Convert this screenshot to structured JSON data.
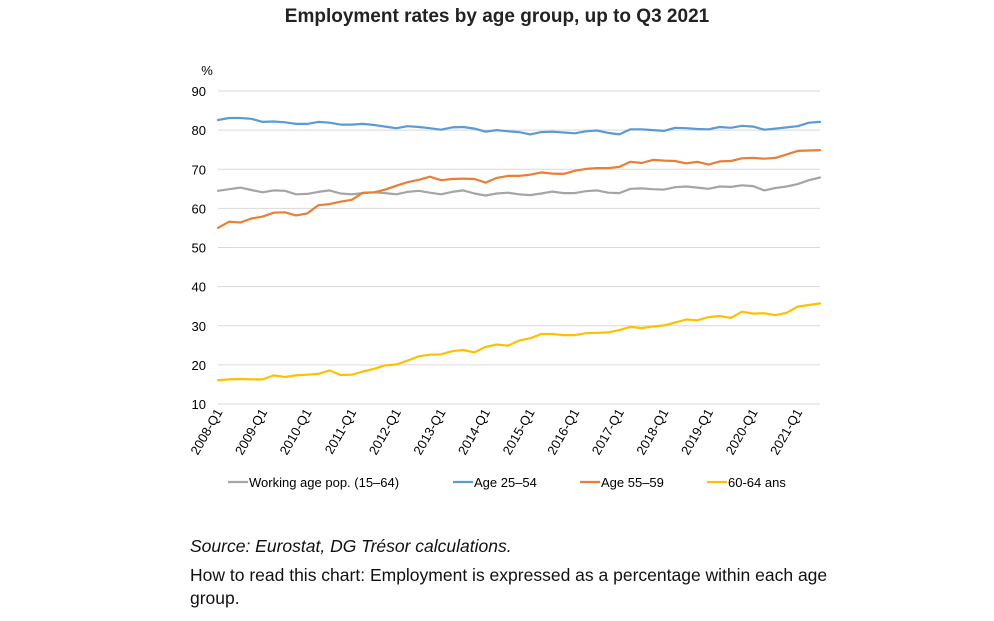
{
  "chart_data": {
    "type": "line",
    "title": "Employment rates by age group, up to Q3 2021",
    "ylabel": "%",
    "xlabel": "",
    "ylim": [
      10,
      90
    ],
    "yticks": [
      10,
      20,
      30,
      40,
      50,
      60,
      70,
      80,
      90
    ],
    "grid": "horizontal",
    "legend_position": "bottom",
    "x": [
      "2008-Q1",
      "2008-Q2",
      "2008-Q3",
      "2008-Q4",
      "2009-Q1",
      "2009-Q2",
      "2009-Q3",
      "2009-Q4",
      "2010-Q1",
      "2010-Q2",
      "2010-Q3",
      "2010-Q4",
      "2011-Q1",
      "2011-Q2",
      "2011-Q3",
      "2011-Q4",
      "2012-Q1",
      "2012-Q2",
      "2012-Q3",
      "2012-Q4",
      "2013-Q1",
      "2013-Q2",
      "2013-Q3",
      "2013-Q4",
      "2014-Q1",
      "2014-Q2",
      "2014-Q3",
      "2014-Q4",
      "2015-Q1",
      "2015-Q2",
      "2015-Q3",
      "2015-Q4",
      "2016-Q1",
      "2016-Q2",
      "2016-Q3",
      "2016-Q4",
      "2017-Q1",
      "2017-Q2",
      "2017-Q3",
      "2017-Q4",
      "2018-Q1",
      "2018-Q2",
      "2018-Q3",
      "2018-Q4",
      "2019-Q1",
      "2019-Q2",
      "2019-Q3",
      "2019-Q4",
      "2020-Q1",
      "2020-Q2",
      "2020-Q3",
      "2020-Q4",
      "2021-Q1",
      "2021-Q2",
      "2021-Q3"
    ],
    "xticks": [
      "2008-Q1",
      "2009-Q1",
      "2010-Q1",
      "2011-Q1",
      "2012-Q1",
      "2013-Q1",
      "2014-Q1",
      "2015-Q1",
      "2016-Q1",
      "2017-Q1",
      "2018-Q1",
      "2019-Q1",
      "2020-Q1",
      "2021-Q1"
    ],
    "series": [
      {
        "name": "Working age pop. (15–64)",
        "color": "#a5a5a5",
        "values": [
          64.5,
          64.9,
          65.3,
          64.7,
          64.1,
          64.6,
          64.5,
          63.6,
          63.7,
          64.2,
          64.6,
          63.8,
          63.6,
          63.9,
          64.1,
          63.9,
          63.6,
          64.2,
          64.5,
          64.0,
          63.6,
          64.2,
          64.6,
          63.8,
          63.3,
          63.8,
          64.0,
          63.6,
          63.4,
          63.8,
          64.3,
          63.9,
          63.9,
          64.4,
          64.6,
          64.0,
          63.9,
          65.0,
          65.1,
          64.9,
          64.8,
          65.4,
          65.6,
          65.3,
          65.0,
          65.6,
          65.5,
          65.9,
          65.7,
          64.6,
          65.2,
          65.6,
          66.2,
          67.2,
          67.9
        ]
      },
      {
        "name": "Age 25–54",
        "color": "#5b9bd5",
        "values": [
          82.6,
          83.1,
          83.1,
          82.9,
          82.1,
          82.2,
          82.0,
          81.6,
          81.6,
          82.1,
          81.9,
          81.4,
          81.4,
          81.6,
          81.3,
          80.9,
          80.5,
          81.0,
          80.8,
          80.5,
          80.1,
          80.7,
          80.8,
          80.4,
          79.6,
          80.0,
          79.7,
          79.5,
          78.9,
          79.5,
          79.6,
          79.4,
          79.2,
          79.7,
          79.9,
          79.3,
          78.9,
          80.2,
          80.2,
          80.0,
          79.8,
          80.6,
          80.5,
          80.3,
          80.2,
          80.8,
          80.6,
          81.1,
          80.9,
          80.1,
          80.4,
          80.7,
          81.0,
          81.9,
          82.1
        ]
      },
      {
        "name": "Age 55–59",
        "color": "#ed7d31",
        "values": [
          55.0,
          56.6,
          56.4,
          57.4,
          57.9,
          58.9,
          59.0,
          58.2,
          58.7,
          60.8,
          61.1,
          61.7,
          62.2,
          64.0,
          64.1,
          64.8,
          65.8,
          66.7,
          67.3,
          68.1,
          67.2,
          67.5,
          67.6,
          67.5,
          66.6,
          67.8,
          68.3,
          68.3,
          68.6,
          69.2,
          68.9,
          68.8,
          69.6,
          70.1,
          70.3,
          70.3,
          70.6,
          71.9,
          71.6,
          72.4,
          72.2,
          72.1,
          71.5,
          71.9,
          71.2,
          72.0,
          72.1,
          72.8,
          72.9,
          72.7,
          72.9,
          73.8,
          74.7,
          74.8,
          74.9
        ]
      },
      {
        "name": "60-64 ans",
        "color": "#ffc000",
        "values": [
          16.1,
          16.3,
          16.4,
          16.3,
          16.3,
          17.3,
          16.9,
          17.3,
          17.5,
          17.7,
          18.6,
          17.4,
          17.5,
          18.3,
          19.0,
          19.9,
          20.1,
          21.1,
          22.2,
          22.6,
          22.7,
          23.5,
          23.8,
          23.2,
          24.6,
          25.2,
          24.9,
          26.2,
          26.8,
          27.9,
          27.9,
          27.6,
          27.6,
          28.1,
          28.2,
          28.3,
          28.9,
          29.7,
          29.4,
          29.8,
          30.1,
          30.8,
          31.6,
          31.4,
          32.2,
          32.5,
          32.0,
          33.6,
          33.1,
          33.2,
          32.7,
          33.3,
          34.9,
          35.3,
          35.7
        ]
      }
    ]
  },
  "notes": {
    "source": "Source: Eurostat, DG Trésor calculations.",
    "reading": "How to read this chart: Employment is expressed as a percentage within each age group."
  }
}
